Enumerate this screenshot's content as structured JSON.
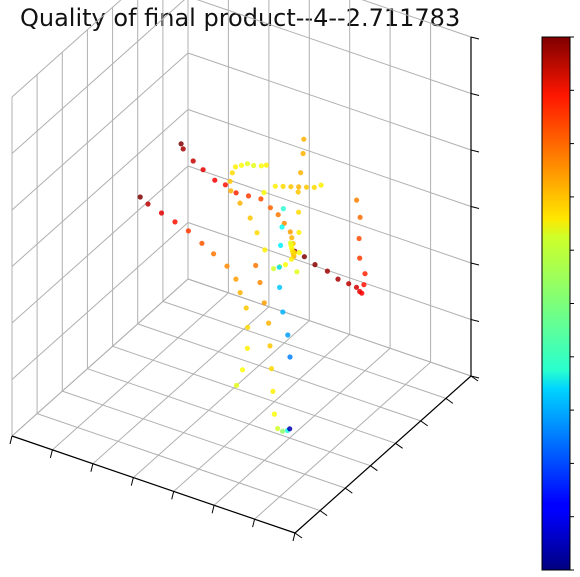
{
  "chart_data": {
    "type": "scatter",
    "projection": "3d",
    "title": "Quality of final product--4--2.711783",
    "xlabel": "",
    "ylabel": "",
    "zlabel": "",
    "tick_labels_shown": false,
    "grid": true,
    "colormap": "jet",
    "colorbar": {
      "shown": true,
      "tick_labels_shown": false
    },
    "series": [
      {
        "points": [
          [
            0.0,
            0.35,
            0.82,
            0.75
          ],
          [
            0.0,
            0.37,
            0.76,
            0.77
          ],
          [
            0.01,
            0.38,
            0.69,
            0.8
          ],
          [
            0.02,
            0.4,
            0.62,
            0.82
          ],
          [
            0.02,
            0.43,
            0.56,
            0.84
          ],
          [
            0.03,
            0.44,
            0.52,
            0.86
          ],
          [
            0.05,
            0.46,
            0.48,
            0.88
          ],
          [
            0.07,
            0.48,
            0.47,
            0.9
          ],
          [
            0.1,
            0.51,
            0.46,
            0.92
          ],
          [
            0.14,
            0.53,
            0.45,
            0.94
          ],
          [
            0.19,
            0.55,
            0.44,
            0.96
          ],
          [
            0.24,
            0.57,
            0.44,
            0.97
          ],
          [
            0.29,
            0.58,
            0.44,
            0.99
          ],
          [
            0.34,
            0.6,
            0.44,
            1.0
          ],
          [
            0.38,
            0.61,
            0.44,
            1.0
          ]
        ]
      },
      {
        "points": [
          [
            0.2,
            0.2,
            0.63,
            0.58
          ],
          [
            0.21,
            0.25,
            0.61,
            0.6
          ],
          [
            0.22,
            0.3,
            0.59,
            0.62
          ],
          [
            0.23,
            0.35,
            0.58,
            0.64
          ],
          [
            0.25,
            0.4,
            0.57,
            0.66
          ],
          [
            0.28,
            0.44,
            0.57,
            0.68
          ],
          [
            0.31,
            0.48,
            0.56,
            0.7
          ],
          [
            0.34,
            0.52,
            0.55,
            0.72
          ],
          [
            0.38,
            0.55,
            0.55,
            0.74
          ],
          [
            0.42,
            0.58,
            0.55,
            0.76
          ],
          [
            0.46,
            0.6,
            0.55,
            0.78
          ],
          [
            0.5,
            0.61,
            0.56,
            0.8
          ],
          [
            0.55,
            0.62,
            0.55,
            0.82
          ],
          [
            0.6,
            0.63,
            0.54,
            0.84
          ],
          [
            0.65,
            0.65,
            0.54,
            0.86
          ],
          [
            0.7,
            0.67,
            0.53,
            0.88
          ],
          [
            0.76,
            0.7,
            0.53,
            0.9
          ],
          [
            0.82,
            0.74,
            0.52,
            0.93
          ],
          [
            0.88,
            0.78,
            0.52,
            0.96
          ],
          [
            0.9,
            0.8,
            0.52,
            1.0
          ]
        ]
      },
      {
        "points": [
          [
            0.3,
            0.15,
            0.28,
            0.6
          ],
          [
            0.31,
            0.2,
            0.3,
            0.62
          ],
          [
            0.33,
            0.26,
            0.33,
            0.64
          ],
          [
            0.36,
            0.31,
            0.36,
            0.66
          ],
          [
            0.39,
            0.35,
            0.39,
            0.68
          ],
          [
            0.43,
            0.38,
            0.41,
            0.7
          ],
          [
            0.47,
            0.42,
            0.42,
            0.72
          ],
          [
            0.52,
            0.45,
            0.43,
            0.74
          ],
          [
            0.58,
            0.47,
            0.44,
            0.76
          ],
          [
            0.64,
            0.5,
            0.44,
            0.79
          ],
          [
            0.7,
            0.52,
            0.45,
            0.82
          ],
          [
            0.76,
            0.54,
            0.45,
            0.86
          ],
          [
            0.82,
            0.56,
            0.45,
            0.9
          ],
          [
            0.88,
            0.58,
            0.45,
            0.94
          ],
          [
            0.92,
            0.6,
            0.45,
            1.0
          ]
        ]
      },
      {
        "points": [
          [
            0.08,
            0.1,
            0.45,
            0.25
          ],
          [
            0.1,
            0.12,
            0.5,
            0.28
          ],
          [
            0.13,
            0.14,
            0.55,
            0.3
          ],
          [
            0.16,
            0.17,
            0.6,
            0.32
          ],
          [
            0.18,
            0.2,
            0.64,
            0.34
          ],
          [
            0.2,
            0.24,
            0.68,
            0.36
          ],
          [
            0.22,
            0.28,
            0.71,
            0.38
          ],
          [
            0.24,
            0.32,
            0.74,
            0.42
          ]
        ]
      },
      {
        "points": [
          [
            0.18,
            0.3,
            0.58,
            0.6
          ],
          [
            0.19,
            0.33,
            0.62,
            0.62
          ],
          [
            0.21,
            0.36,
            0.66,
            0.64
          ],
          [
            0.23,
            0.39,
            0.7,
            0.66
          ],
          [
            0.25,
            0.42,
            0.74,
            0.68
          ],
          [
            0.26,
            0.45,
            0.78,
            0.7
          ],
          [
            0.27,
            0.48,
            0.82,
            0.7
          ],
          [
            0.28,
            0.5,
            0.85,
            0.7
          ]
        ]
      },
      {
        "points": [
          [
            0.05,
            0.05,
            0.27,
            0.05
          ],
          [
            0.07,
            0.07,
            0.25,
            0.4
          ],
          [
            0.1,
            0.09,
            0.23,
            0.52
          ],
          [
            0.13,
            0.11,
            0.22,
            0.58
          ],
          [
            0.16,
            0.14,
            0.24,
            0.62
          ],
          [
            0.19,
            0.18,
            0.28,
            0.64
          ],
          [
            0.22,
            0.22,
            0.32,
            0.66
          ],
          [
            0.25,
            0.26,
            0.36,
            0.68
          ],
          [
            0.28,
            0.3,
            0.4,
            0.7
          ],
          [
            0.32,
            0.34,
            0.43,
            0.72
          ],
          [
            0.36,
            0.38,
            0.46,
            0.74
          ],
          [
            0.4,
            0.42,
            0.48,
            0.76
          ]
        ]
      },
      {
        "points": [
          [
            0.35,
            0.4,
            0.8,
            0.64
          ],
          [
            0.38,
            0.42,
            0.78,
            0.62
          ],
          [
            0.42,
            0.44,
            0.76,
            0.6
          ],
          [
            0.46,
            0.47,
            0.74,
            0.6
          ],
          [
            0.5,
            0.5,
            0.71,
            0.62
          ],
          [
            0.54,
            0.53,
            0.68,
            0.64
          ],
          [
            0.57,
            0.56,
            0.64,
            0.66
          ],
          [
            0.59,
            0.58,
            0.6,
            0.68
          ],
          [
            0.6,
            0.6,
            0.56,
            0.7
          ],
          [
            0.58,
            0.62,
            0.52,
            0.7
          ],
          [
            0.55,
            0.63,
            0.48,
            0.68
          ],
          [
            0.52,
            0.62,
            0.45,
            0.66
          ],
          [
            0.48,
            0.6,
            0.42,
            0.64
          ]
        ]
      },
      {
        "points": [
          [
            0.25,
            0.55,
            0.7,
            0.64
          ],
          [
            0.28,
            0.56,
            0.68,
            0.66
          ],
          [
            0.32,
            0.58,
            0.66,
            0.68
          ],
          [
            0.36,
            0.6,
            0.64,
            0.7
          ],
          [
            0.4,
            0.62,
            0.62,
            0.68
          ],
          [
            0.44,
            0.64,
            0.6,
            0.66
          ],
          [
            0.48,
            0.66,
            0.58,
            0.64
          ],
          [
            0.52,
            0.66,
            0.55,
            0.62
          ]
        ]
      },
      {
        "points": [
          [
            0.24,
            0.36,
            0.62,
            0.6
          ],
          [
            0.25,
            0.38,
            0.6,
            0.62
          ],
          [
            0.26,
            0.4,
            0.58,
            0.64
          ],
          [
            0.27,
            0.42,
            0.56,
            0.66
          ],
          [
            0.28,
            0.44,
            0.54,
            0.68
          ],
          [
            0.29,
            0.46,
            0.52,
            0.7
          ]
        ]
      }
    ]
  },
  "colors": {
    "axis": "#000000",
    "grid": "#b0b0b0",
    "colorbar_outline": "#000000"
  }
}
